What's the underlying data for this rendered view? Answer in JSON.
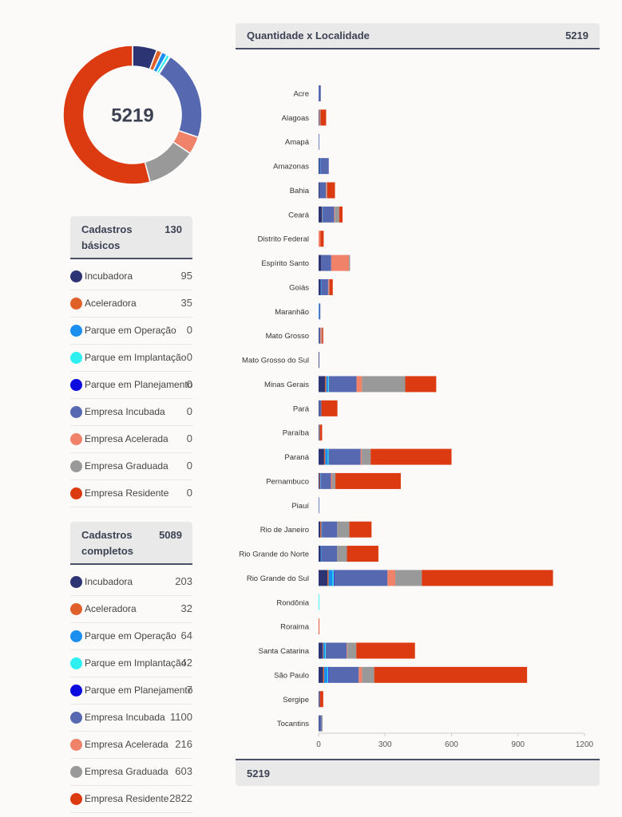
{
  "donut": {
    "total": "5219"
  },
  "basic": {
    "title": "Cadastros básicos",
    "total": "130",
    "items": [
      {
        "label": "Incubadora",
        "value": "95",
        "color": "#2d3474"
      },
      {
        "label": "Aceleradora",
        "value": "35",
        "color": "#e0602a"
      },
      {
        "label": "Parque em Operação",
        "value": "0",
        "color": "#1a8ff0"
      },
      {
        "label": "Parque em Implantação",
        "value": "0",
        "color": "#2ff0f0"
      },
      {
        "label": "Parque em Planejamento",
        "value": "0",
        "color": "#0b0be0"
      },
      {
        "label": "Empresa Incubada",
        "value": "0",
        "color": "#5568b0"
      },
      {
        "label": "Empresa Acelerada",
        "value": "0",
        "color": "#f0826a"
      },
      {
        "label": "Empresa Graduada",
        "value": "0",
        "color": "#999999"
      },
      {
        "label": "Empresa Residente",
        "value": "0",
        "color": "#dc3a10"
      }
    ]
  },
  "complete": {
    "title": "Cadastros completos",
    "total": "5089",
    "items": [
      {
        "label": "Incubadora",
        "value": "203",
        "color": "#2d3474"
      },
      {
        "label": "Aceleradora",
        "value": "32",
        "color": "#e0602a"
      },
      {
        "label": "Parque em Operação",
        "value": "64",
        "color": "#1a8ff0"
      },
      {
        "label": "Parque em Implantação",
        "value": "42",
        "color": "#2ff0f0"
      },
      {
        "label": "Parque em Planejamento",
        "value": "7",
        "color": "#0b0be0"
      },
      {
        "label": "Empresa Incubada",
        "value": "1100",
        "color": "#5568b0"
      },
      {
        "label": "Empresa Acelerada",
        "value": "216",
        "color": "#f0826a"
      },
      {
        "label": "Empresa Graduada",
        "value": "603",
        "color": "#999999"
      },
      {
        "label": "Empresa Residente",
        "value": "2822",
        "color": "#dc3a10"
      }
    ]
  },
  "panel": {
    "title": "Quantidade x Localidade",
    "total": "5219",
    "footer_total": "5219"
  },
  "chart_data": [
    {
      "type": "pie",
      "categories": [
        "Incubadora",
        "Aceleradora",
        "Parque em Operação",
        "Parque em Implantação",
        "Parque em Planejamento",
        "Empresa Incubada",
        "Empresa Acelerada",
        "Empresa Graduada",
        "Empresa Residente"
      ],
      "values": [
        298,
        67,
        64,
        42,
        7,
        1100,
        216,
        603,
        2822
      ],
      "colors": [
        "#2d3474",
        "#e0602a",
        "#1a8ff0",
        "#2ff0f0",
        "#0b0be0",
        "#5568b0",
        "#f0826a",
        "#999999",
        "#dc3a10"
      ],
      "center_label": "5219",
      "donut": true
    },
    {
      "type": "bar",
      "orientation": "horizontal",
      "stacked": true,
      "title": "Quantidade x Localidade",
      "xlim": [
        0,
        1200
      ],
      "xticks": [
        0,
        300,
        600,
        900,
        1200
      ],
      "grid": false,
      "categories": [
        "Acre",
        "Alagoas",
        "Amapá",
        "Amazonas",
        "Bahia",
        "Ceará",
        "Distrito Federal",
        "Espírito Santo",
        "Goiás",
        "Maranhão",
        "Mato Grosso",
        "Mato Grosso do Sul",
        "Minas Gerais",
        "Pará",
        "Paraíba",
        "Paraná",
        "Pernambuco",
        "Piauí",
        "Rio de Janeiro",
        "Rio Grande do Norte",
        "Rio Grande do Sul",
        "Rondônia",
        "Roraima",
        "Santa Catarina",
        "São Paulo",
        "Sergipe",
        "Tocantins"
      ],
      "series": [
        {
          "name": "Incubadora",
          "color": "#2d3474",
          "values": [
            0,
            3,
            0,
            5,
            5,
            15,
            0,
            12,
            10,
            0,
            3,
            3,
            30,
            3,
            3,
            25,
            5,
            0,
            8,
            10,
            40,
            0,
            0,
            18,
            20,
            3,
            3
          ]
        },
        {
          "name": "Aceleradora",
          "color": "#e0602a",
          "values": [
            0,
            0,
            0,
            0,
            0,
            2,
            0,
            0,
            0,
            0,
            0,
            0,
            5,
            0,
            0,
            5,
            3,
            0,
            5,
            0,
            5,
            0,
            0,
            3,
            5,
            0,
            0
          ]
        },
        {
          "name": "Parque em Operação",
          "color": "#1a8ff0",
          "values": [
            0,
            0,
            0,
            3,
            0,
            3,
            0,
            0,
            3,
            3,
            0,
            0,
            8,
            0,
            0,
            12,
            3,
            0,
            3,
            3,
            18,
            0,
            0,
            8,
            15,
            0,
            0
          ]
        },
        {
          "name": "Parque em Implantação",
          "color": "#2ff0f0",
          "values": [
            0,
            0,
            0,
            0,
            0,
            0,
            0,
            0,
            0,
            0,
            0,
            0,
            3,
            0,
            0,
            3,
            0,
            0,
            0,
            0,
            5,
            3,
            0,
            3,
            3,
            0,
            0
          ]
        },
        {
          "name": "Parque em Planejamento",
          "color": "#0b0be0",
          "values": [
            0,
            0,
            0,
            0,
            0,
            0,
            0,
            0,
            0,
            0,
            0,
            0,
            0,
            0,
            0,
            0,
            0,
            0,
            0,
            0,
            3,
            0,
            0,
            0,
            3,
            0,
            0
          ]
        },
        {
          "name": "Empresa Incubada",
          "color": "#5568b0",
          "values": [
            10,
            0,
            3,
            38,
            28,
            50,
            0,
            45,
            30,
            5,
            5,
            0,
            125,
            10,
            0,
            145,
            45,
            3,
            68,
            70,
            240,
            0,
            0,
            95,
            135,
            3,
            10
          ]
        },
        {
          "name": "Empresa Acelerada",
          "color": "#f0826a",
          "values": [
            0,
            3,
            0,
            0,
            3,
            3,
            8,
            80,
            3,
            0,
            5,
            0,
            25,
            0,
            0,
            5,
            5,
            0,
            0,
            0,
            35,
            0,
            0,
            3,
            15,
            0,
            0
          ]
        },
        {
          "name": "Empresa Graduada",
          "color": "#999999",
          "values": [
            0,
            3,
            0,
            0,
            3,
            20,
            0,
            5,
            3,
            0,
            3,
            0,
            195,
            0,
            3,
            40,
            15,
            0,
            55,
            45,
            120,
            0,
            0,
            40,
            55,
            0,
            5
          ]
        },
        {
          "name": "Empresa Residente",
          "color": "#dc3a10",
          "values": [
            0,
            25,
            0,
            0,
            35,
            15,
            15,
            0,
            15,
            0,
            5,
            0,
            140,
            72,
            10,
            365,
            295,
            0,
            100,
            142,
            592,
            0,
            3,
            265,
            690,
            15,
            0
          ]
        }
      ]
    }
  ]
}
